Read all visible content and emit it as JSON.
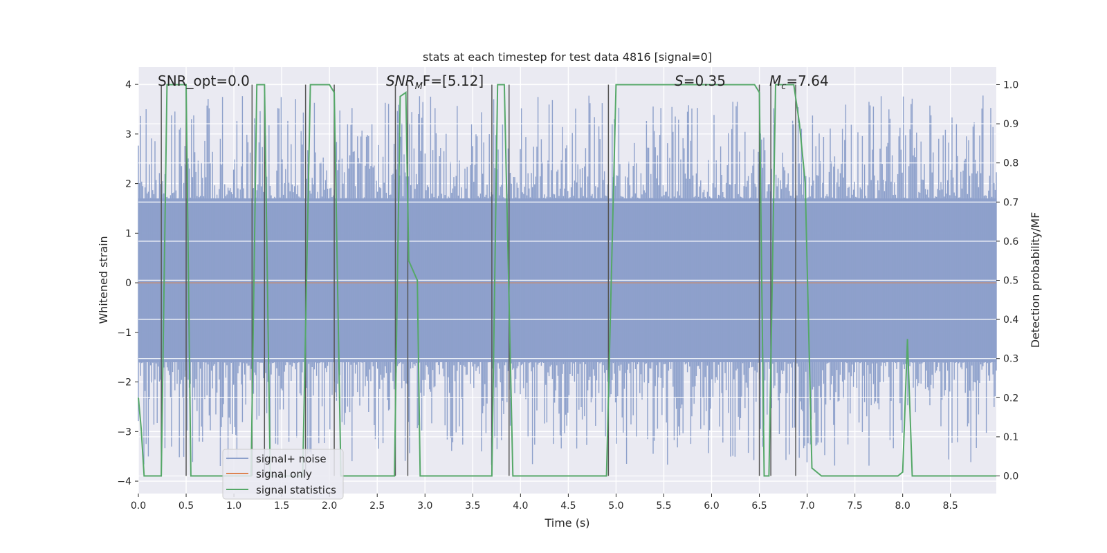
{
  "chart_data": {
    "type": "line",
    "title": "stats at each timestep for test data 4816 [signal=0]",
    "xlabel": "Time (s)",
    "ylabel_left": "Whitened strain",
    "ylabel_right": "Detection probability/MF",
    "xlim": [
      0.0,
      8.98
    ],
    "ylim_left": [
      -4.25,
      4.35
    ],
    "ylim_right": [
      -0.045,
      1.045
    ],
    "xticks": [
      0.0,
      0.5,
      1.0,
      1.5,
      2.0,
      2.5,
      3.0,
      3.5,
      4.0,
      4.5,
      5.0,
      5.5,
      6.0,
      6.5,
      7.0,
      7.5,
      8.0,
      8.5
    ],
    "xtick_labels": [
      "0.0",
      "0.5",
      "1.0",
      "1.5",
      "2.0",
      "2.5",
      "3.0",
      "3.5",
      "4.0",
      "4.5",
      "5.0",
      "5.5",
      "6.0",
      "6.5",
      "7.0",
      "7.5",
      "8.0",
      "8.5"
    ],
    "yticks_left": [
      4,
      3,
      2,
      1,
      0,
      -1,
      -2,
      -3,
      -4
    ],
    "ytick_labels_left": [
      "4",
      "3",
      "2",
      "1",
      "0",
      "−1",
      "−2",
      "−3",
      "−4"
    ],
    "yticks_right": [
      1.0,
      0.9,
      0.8,
      0.7,
      0.6,
      0.5,
      0.4,
      0.3,
      0.2,
      0.1,
      0.0
    ],
    "ytick_labels_right": [
      "1.0",
      "0.9",
      "0.8",
      "0.7",
      "0.6",
      "0.5",
      "0.4",
      "0.3",
      "0.2",
      "0.1",
      "0.0"
    ],
    "grid": true,
    "legend_position": "lower-left",
    "annotations": {
      "snr_opt": "SNR_opt=0.0",
      "snr_mf_sym": "SNR",
      "snr_mf_sub": "M",
      "snr_mf_rest": "F=[5.12]",
      "s_sym": "S",
      "s_rest": "=0.35",
      "mc_sym": "M",
      "mc_sub": "c",
      "mc_rest": "=7.64"
    },
    "series": [
      {
        "name": "signal+ noise",
        "color": "#8da0cb",
        "description": "whitened noise, dense band roughly between -1.6 and 1.7 with spikes up to about 3.8 and down to about -3.7",
        "band": [
          -1.6,
          1.7
        ],
        "peak_max": 3.8,
        "peak_min": -3.7
      },
      {
        "name": "signal only",
        "color": "#dd8452",
        "values_constant": 0.0
      },
      {
        "name": "signal statistics",
        "color": "#55a868",
        "points": [
          [
            0.0,
            0.2
          ],
          [
            0.03,
            0.12
          ],
          [
            0.06,
            0.0
          ],
          [
            0.24,
            0.0
          ],
          [
            0.3,
            1.0
          ],
          [
            0.5,
            1.0
          ],
          [
            0.55,
            0.0
          ],
          [
            1.18,
            0.0
          ],
          [
            1.24,
            1.0
          ],
          [
            1.32,
            1.0
          ],
          [
            1.38,
            0.0
          ],
          [
            1.72,
            0.0
          ],
          [
            1.8,
            1.0
          ],
          [
            2.0,
            1.0
          ],
          [
            2.05,
            0.98
          ],
          [
            2.12,
            0.0
          ],
          [
            2.68,
            0.0
          ],
          [
            2.74,
            0.97
          ],
          [
            2.8,
            0.98
          ],
          [
            2.83,
            0.55
          ],
          [
            2.92,
            0.5
          ],
          [
            2.95,
            0.0
          ],
          [
            3.7,
            0.0
          ],
          [
            3.76,
            1.0
          ],
          [
            3.83,
            1.0
          ],
          [
            3.92,
            0.0
          ],
          [
            4.9,
            0.0
          ],
          [
            5.0,
            1.0
          ],
          [
            6.45,
            1.0
          ],
          [
            6.5,
            0.98
          ],
          [
            6.55,
            0.0
          ],
          [
            6.6,
            0.0
          ],
          [
            6.67,
            1.0
          ],
          [
            6.86,
            1.0
          ],
          [
            6.92,
            0.9
          ],
          [
            6.98,
            0.75
          ],
          [
            7.05,
            0.02
          ],
          [
            7.15,
            0.0
          ],
          [
            7.95,
            0.0
          ],
          [
            8.0,
            0.01
          ],
          [
            8.05,
            0.35
          ],
          [
            8.1,
            0.0
          ],
          [
            8.98,
            0.0
          ]
        ]
      }
    ],
    "vertical_markers": [
      0.24,
      0.5,
      1.19,
      1.32,
      1.75,
      2.05,
      2.69,
      2.82,
      3.7,
      3.88,
      4.92,
      6.5,
      6.62,
      6.88
    ],
    "legend": [
      {
        "label": "signal+ noise",
        "color": "#8da0cb"
      },
      {
        "label": "signal only",
        "color": "#dd8452"
      },
      {
        "label": "signal statistics",
        "color": "#55a868"
      }
    ]
  }
}
